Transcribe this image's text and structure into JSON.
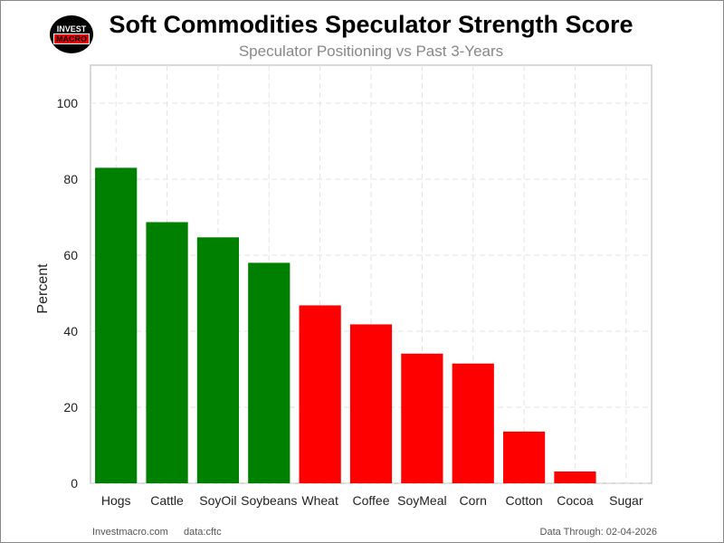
{
  "logo": {
    "line1": "INVEST",
    "line2": "MACRO"
  },
  "footer": {
    "site": "Investmacro.com",
    "source": "data:cftc",
    "through": "Data Through: 02-04-2026"
  },
  "chart_data": {
    "type": "bar",
    "title": "Soft Commodities Speculator Strength Score",
    "subtitle": "Speculator Positioning vs Past 3-Years",
    "xlabel": "",
    "ylabel": "Percent",
    "ylim": [
      0,
      110
    ],
    "yticks": [
      0,
      20,
      40,
      60,
      80,
      100
    ],
    "grid": true,
    "categories": [
      "Hogs",
      "Cattle",
      "SoyOil",
      "Soybeans",
      "Wheat",
      "Coffee",
      "SoyMeal",
      "Corn",
      "Cotton",
      "Cocoa",
      "Sugar"
    ],
    "values": [
      83.0,
      68.7,
      64.7,
      58.0,
      46.8,
      41.8,
      34.1,
      31.5,
      13.6,
      3.1,
      0
    ],
    "colors": {
      "above50": "#008000",
      "below50": "#ff0000"
    }
  }
}
